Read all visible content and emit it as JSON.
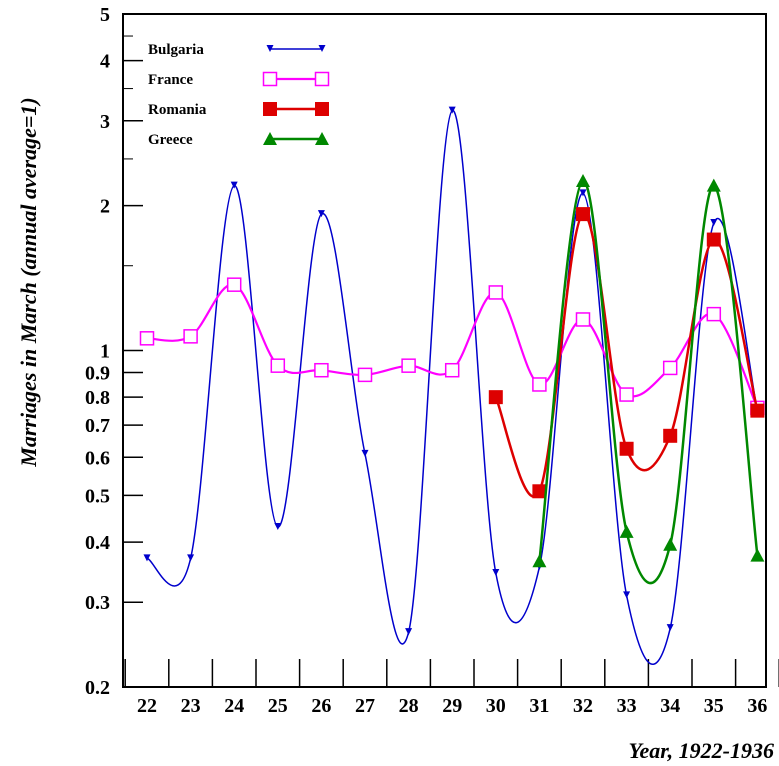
{
  "chart_data": {
    "type": "line",
    "xlabel": "Year, 1922-1936",
    "ylabel": "Marriages in March (annual average=1)",
    "y_scale": "log",
    "ylim": [
      0.2,
      5
    ],
    "xlim": [
      21.5,
      36.5
    ],
    "grid": false,
    "legend_position": "top-left",
    "x_ticks": [
      "22",
      "23",
      "24",
      "25",
      "26",
      "27",
      "28",
      "29",
      "30",
      "31",
      "32",
      "33",
      "34",
      "35",
      "36"
    ],
    "y_ticks": [
      0.2,
      0.3,
      0.4,
      0.5,
      0.6,
      0.7,
      0.8,
      0.9,
      1,
      2,
      3,
      4,
      5
    ],
    "series": [
      {
        "name": "Bulgaria",
        "color": "#0000cc",
        "marker": "triangle-down-small",
        "x": [
          22,
          23,
          24,
          25,
          26,
          27,
          28,
          29,
          30,
          31,
          32,
          33,
          34,
          35,
          36
        ],
        "y": [
          0.37,
          0.37,
          2.2,
          0.43,
          1.92,
          0.61,
          0.26,
          3.15,
          0.345,
          0.355,
          2.12,
          0.31,
          0.265,
          1.84,
          0.75
        ]
      },
      {
        "name": "France",
        "color": "#ff00ff",
        "marker": "square-open",
        "x": [
          22,
          23,
          24,
          25,
          26,
          27,
          28,
          29,
          30,
          31,
          32,
          33,
          34,
          35,
          36
        ],
        "y": [
          1.06,
          1.07,
          1.37,
          0.93,
          0.91,
          0.89,
          0.93,
          0.91,
          1.32,
          0.85,
          1.16,
          0.81,
          0.92,
          1.19,
          0.76
        ]
      },
      {
        "name": "Romania",
        "color": "#dd0000",
        "marker": "square-filled",
        "x": [
          30,
          31,
          32,
          33,
          34,
          35,
          36
        ],
        "y": [
          0.8,
          0.51,
          1.92,
          0.625,
          0.665,
          1.7,
          0.75
        ]
      },
      {
        "name": "Greece",
        "color": "#008800",
        "marker": "triangle-up-filled",
        "x": [
          31,
          32,
          33,
          34,
          35,
          36
        ],
        "y": [
          0.365,
          2.25,
          0.42,
          0.395,
          2.2,
          0.375
        ]
      }
    ]
  }
}
